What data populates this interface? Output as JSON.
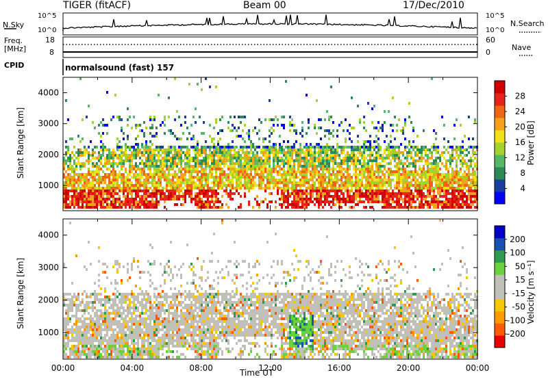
{
  "header": {
    "station": "TIGER (fitACF)",
    "beam": "Beam 00",
    "date": "17/Dec/2010"
  },
  "strip": {
    "nsky_label": "N.Sky",
    "nsky_ticks": [
      "10^5",
      "10^0"
    ],
    "nsearch_label": "N.Search",
    "nsearch_ticks": [
      "10^5",
      "10^0"
    ],
    "freq_label_1": "Freq.",
    "freq_label_2": "[MHz]",
    "freq_ticks": [
      "18",
      "8"
    ],
    "nave_label": "Nave",
    "nave_ticks": [
      "60",
      "0"
    ],
    "cpid_label": "CPID",
    "cpid_value": "normalsound (fast) 157"
  },
  "colors": {
    "power_scale": [
      "#0000ff",
      "#1a3ea0",
      "#2e8a55",
      "#55b866",
      "#a6d22e",
      "#f2e019",
      "#f5a21a",
      "#f06416",
      "#e6241a",
      "#d00000"
    ],
    "velocity_scale": [
      "#e60000",
      "#ff5a00",
      "#ff9a00",
      "#f5c800",
      "#c0c0b8",
      "#c0c0b8",
      "#6ad23c",
      "#2f9a50",
      "#1850b4",
      "#0000c8"
    ]
  },
  "chart_data": [
    {
      "type": "heatmap",
      "title": "Power",
      "ylabel": "Slant Range [km]",
      "xlabel": "",
      "yticks": [
        "1000",
        "2000",
        "3000",
        "4000"
      ],
      "ylim": [
        180,
        4500
      ],
      "xlim_hours": [
        0,
        24
      ],
      "colorbar_label": "Power [dB]",
      "colorbar_ticks": [
        "4",
        "8",
        "12",
        "16",
        "20",
        "24",
        "28"
      ],
      "colorbar_range": [
        0,
        30
      ]
    },
    {
      "type": "heatmap",
      "title": "Velocity",
      "ylabel": "Slant Range [km]",
      "xlabel": "Time UT",
      "xticks": [
        "00:00",
        "04:00",
        "08:00",
        "12:00",
        "16:00",
        "20:00",
        "00:00"
      ],
      "yticks": [
        "1000",
        "2000",
        "3000",
        "4000"
      ],
      "ylim": [
        180,
        4500
      ],
      "xlim_hours": [
        0,
        24
      ],
      "colorbar_label": "Velocity [m s⁻¹]",
      "colorbar_ticks": [
        "-200",
        "-100",
        "-50",
        "-15",
        "15",
        "50",
        "100",
        "200"
      ],
      "colorbar_range": [
        -250,
        250
      ]
    }
  ]
}
